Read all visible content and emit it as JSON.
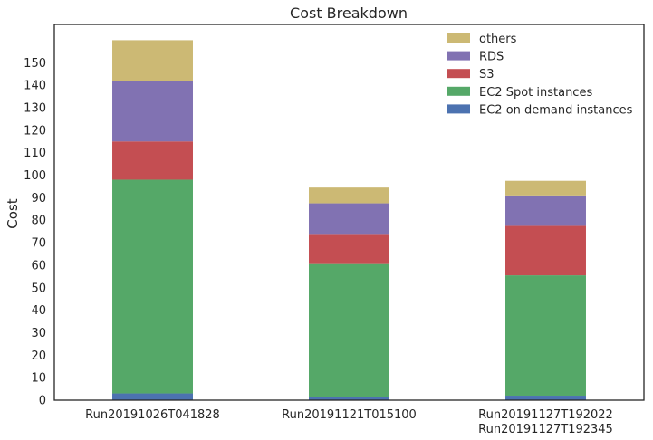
{
  "chart_data": {
    "type": "bar",
    "stacked": true,
    "title": "Cost Breakdown",
    "xlabel": "",
    "ylabel": "Cost",
    "ylim": [
      0,
      167
    ],
    "yticks": [
      0,
      10,
      20,
      30,
      40,
      50,
      60,
      70,
      80,
      90,
      100,
      110,
      120,
      130,
      140,
      150
    ],
    "grid": false,
    "legend_position": "top-right",
    "categories": [
      [
        "Run20191026T041828"
      ],
      [
        "Run20191121T015100"
      ],
      [
        "Run20191127T192022",
        "Run20191127T192345"
      ]
    ],
    "series": [
      {
        "name": "EC2 on demand instances",
        "color": "#4c72b0",
        "values": [
          3,
          1.5,
          2
        ]
      },
      {
        "name": "EC2 Spot instances",
        "color": "#55a868",
        "values": [
          95,
          59,
          53.5
        ]
      },
      {
        "name": "S3",
        "color": "#c44e52",
        "values": [
          17,
          13,
          22
        ]
      },
      {
        "name": "RDS",
        "color": "#8172b2",
        "values": [
          27,
          14,
          13.5
        ]
      },
      {
        "name": "others",
        "color": "#ccb974",
        "values": [
          18,
          7,
          6.5
        ]
      }
    ]
  }
}
